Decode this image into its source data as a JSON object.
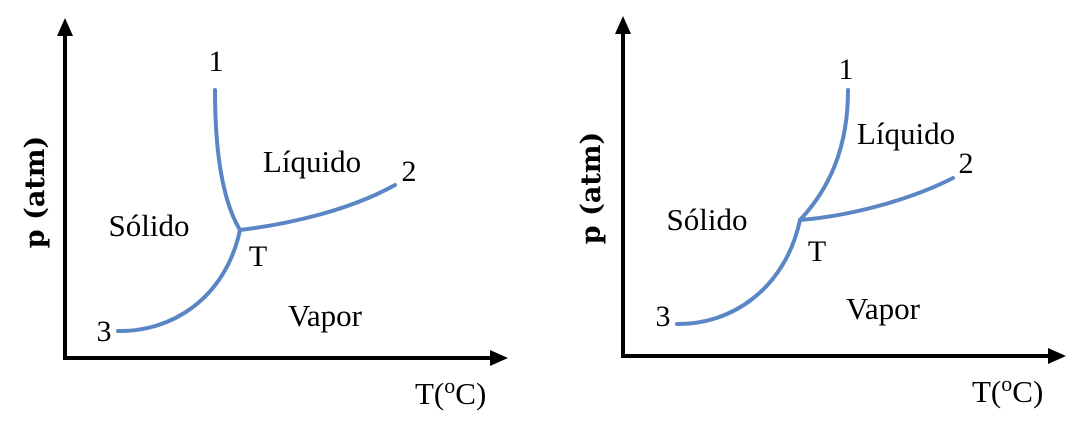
{
  "diagrams": [
    {
      "y_axis_label": "p (atm)",
      "x_axis_label_main": "T(",
      "x_axis_label_sup": "o",
      "x_axis_label_end": "C)",
      "regions": {
        "solid": "Sólido",
        "liquid": "Líquido",
        "vapor": "Vapor"
      },
      "points": {
        "p1": "1",
        "p2": "2",
        "p3": "3",
        "triple": "T"
      },
      "curve_color": "#5b86c5"
    },
    {
      "y_axis_label": "p (atm)",
      "x_axis_label_main": "T(",
      "x_axis_label_sup": "o",
      "x_axis_label_end": "C)",
      "regions": {
        "solid": "Sólido",
        "liquid": "Líquido",
        "vapor": "Vapor"
      },
      "points": {
        "p1": "1",
        "p2": "2",
        "p3": "3",
        "triple": "T"
      },
      "curve_color": "#5b86c5"
    }
  ]
}
